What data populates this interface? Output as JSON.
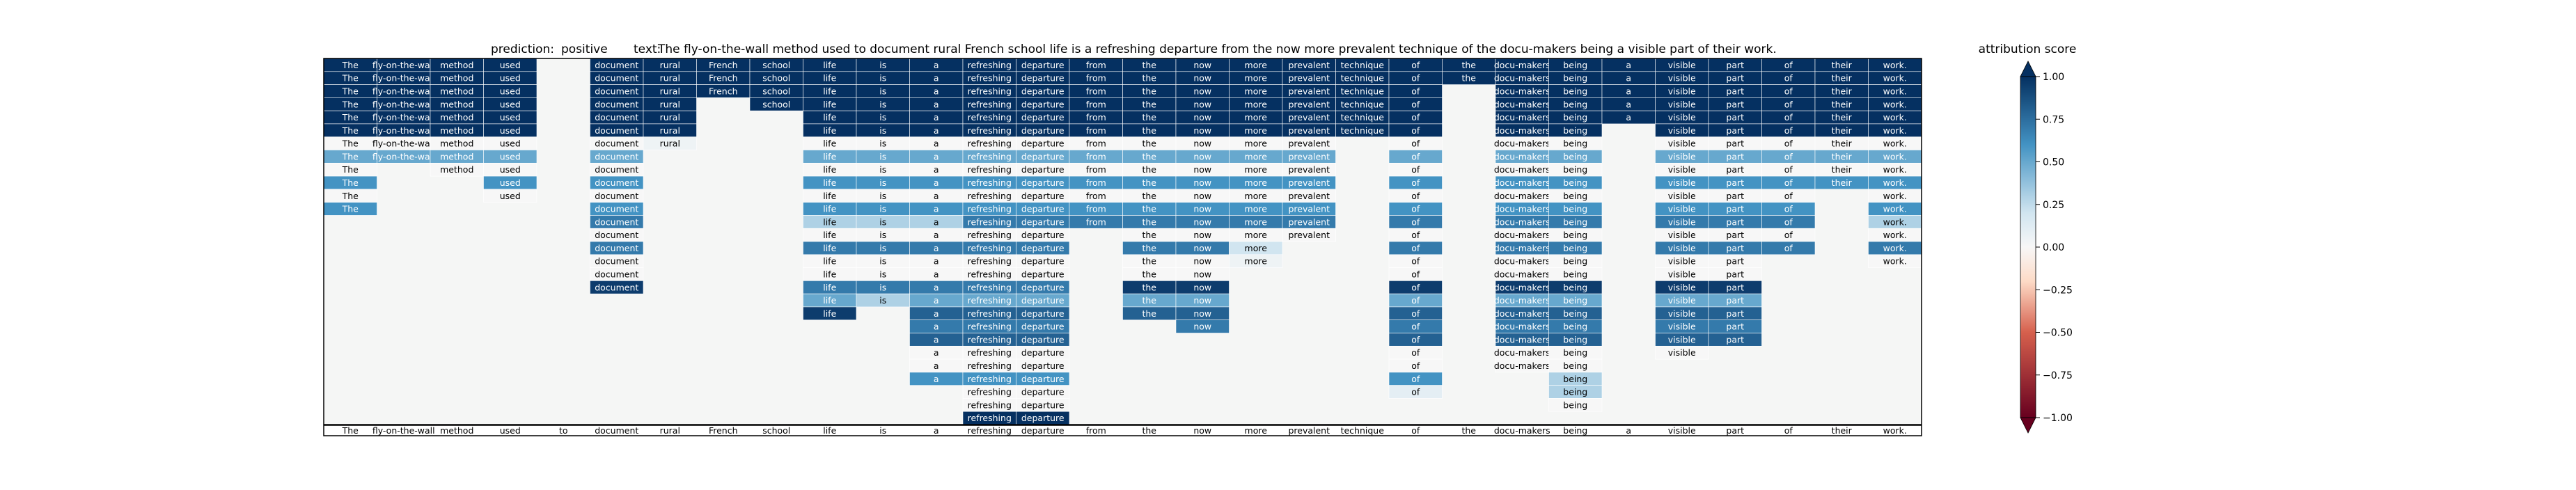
{
  "chart_data": {
    "type": "heatmap",
    "title": {
      "prediction_label": "prediction:",
      "prediction": "positive",
      "text_label": "text:",
      "text": "The fly-on-the-wall method used to document rural French school life is a refreshing departure from the now more prevalent technique of the docu-makers being a visible part of their work."
    },
    "tokens": [
      "The",
      "fly-on-the-wall",
      "method",
      "used",
      "to",
      "document",
      "rural",
      "French",
      "school",
      "life",
      "is",
      "a",
      "refreshing",
      "departure",
      "from",
      "the",
      "now",
      "more",
      "prevalent",
      "technique",
      "of",
      "the",
      "docu-makers",
      "being",
      "a",
      "visible",
      "part",
      "of",
      "their",
      "work."
    ],
    "rows": [
      [
        1,
        1,
        1,
        1,
        null,
        1,
        1,
        1,
        1,
        1,
        1,
        1,
        1,
        1,
        1,
        1,
        1,
        1,
        1,
        1,
        1,
        1,
        1,
        1,
        1,
        1,
        1,
        1,
        1,
        1
      ],
      [
        1,
        1,
        1,
        1,
        null,
        1,
        1,
        1,
        1,
        1,
        1,
        1,
        1,
        1,
        1,
        1,
        1,
        1,
        1,
        1,
        1,
        1,
        1,
        1,
        1,
        1,
        1,
        1,
        1,
        1
      ],
      [
        1,
        1,
        1,
        1,
        null,
        1,
        1,
        1,
        1,
        1,
        1,
        1,
        1,
        1,
        1,
        1,
        1,
        1,
        1,
        1,
        1,
        null,
        1,
        1,
        1,
        1,
        1,
        1,
        1,
        1
      ],
      [
        1,
        1,
        1,
        1,
        null,
        1,
        1,
        null,
        1,
        1,
        1,
        1,
        1,
        1,
        1,
        1,
        1,
        1,
        1,
        1,
        1,
        null,
        1,
        1,
        1,
        1,
        1,
        1,
        1,
        1
      ],
      [
        1,
        1,
        1,
        1,
        null,
        1,
        1,
        null,
        null,
        1,
        1,
        1,
        1,
        1,
        1,
        1,
        1,
        1,
        1,
        1,
        1,
        null,
        1,
        1,
        1,
        1,
        1,
        1,
        1,
        1
      ],
      [
        1,
        1,
        1,
        1,
        null,
        1,
        1,
        null,
        null,
        1,
        1,
        1,
        1,
        1,
        1,
        1,
        1,
        1,
        1,
        1,
        1,
        null,
        1,
        1,
        null,
        1,
        1,
        1,
        1,
        1
      ],
      [
        0,
        0,
        0,
        0,
        null,
        0,
        0.05,
        null,
        null,
        0,
        0,
        0,
        0,
        0,
        0,
        0,
        0,
        0,
        0,
        null,
        0,
        null,
        0,
        0,
        null,
        0,
        0,
        0,
        0,
        0
      ],
      [
        0.5,
        0.5,
        0.5,
        0.5,
        null,
        0.5,
        null,
        null,
        null,
        0.5,
        0.5,
        0.5,
        0.5,
        0.5,
        0.5,
        0.5,
        0.5,
        0.5,
        0.5,
        null,
        0.5,
        null,
        0.5,
        0.5,
        null,
        0.5,
        0.5,
        0.5,
        0.5,
        0.5
      ],
      [
        0,
        null,
        0,
        0,
        null,
        0,
        null,
        null,
        null,
        0,
        0,
        0,
        0,
        0,
        0,
        0,
        0,
        0,
        0,
        null,
        0,
        null,
        0,
        0,
        null,
        0,
        0,
        0,
        0,
        0
      ],
      [
        0.6,
        null,
        null,
        0.6,
        null,
        0.6,
        null,
        null,
        null,
        0.6,
        0.6,
        0.6,
        0.6,
        0.6,
        0.6,
        0.6,
        0.6,
        0.6,
        0.6,
        null,
        0.6,
        null,
        0.6,
        0.6,
        null,
        0.6,
        0.6,
        0.6,
        0.6,
        0.6
      ],
      [
        0,
        null,
        null,
        0,
        null,
        0,
        null,
        null,
        null,
        0,
        0,
        0,
        0,
        0,
        0,
        0,
        0,
        0,
        0,
        null,
        0,
        null,
        0,
        0,
        null,
        0,
        0,
        0,
        null,
        0
      ],
      [
        0.6,
        null,
        null,
        null,
        null,
        0.6,
        null,
        null,
        null,
        0.6,
        0.6,
        0.6,
        0.6,
        0.6,
        0.6,
        0.6,
        0.6,
        0.6,
        0.6,
        null,
        0.6,
        null,
        0.6,
        0.6,
        null,
        0.6,
        0.6,
        0.6,
        null,
        0.6
      ],
      [
        null,
        null,
        null,
        null,
        null,
        0.7,
        null,
        null,
        null,
        0.3,
        0.3,
        0.3,
        0.7,
        0.7,
        0.7,
        0.7,
        0.7,
        0.7,
        0.7,
        null,
        0.7,
        null,
        0.7,
        0.7,
        null,
        0.7,
        0.7,
        0.7,
        null,
        0.3
      ],
      [
        null,
        null,
        null,
        null,
        null,
        0,
        null,
        null,
        null,
        0,
        0,
        0,
        0,
        0,
        null,
        0,
        0,
        0,
        0,
        null,
        0,
        null,
        0,
        0,
        null,
        0,
        0,
        0,
        null,
        0
      ],
      [
        null,
        null,
        null,
        null,
        null,
        0.7,
        null,
        null,
        null,
        0.7,
        0.7,
        0.7,
        0.7,
        0.7,
        null,
        0.7,
        0.7,
        0.2,
        null,
        null,
        0.7,
        null,
        0.7,
        0.7,
        null,
        0.7,
        0.7,
        0.7,
        null,
        0.7
      ],
      [
        null,
        null,
        null,
        null,
        null,
        0,
        null,
        null,
        null,
        0,
        0,
        0,
        0,
        0,
        null,
        0,
        0,
        0.05,
        null,
        null,
        0,
        null,
        0,
        0,
        null,
        0,
        0,
        null,
        null,
        0
      ],
      [
        null,
        null,
        null,
        null,
        null,
        0,
        null,
        null,
        null,
        0,
        0,
        0,
        0,
        0,
        null,
        0,
        0,
        null,
        null,
        null,
        0,
        null,
        0,
        0,
        null,
        0,
        0,
        null,
        null,
        null
      ],
      [
        null,
        null,
        null,
        null,
        null,
        0.95,
        null,
        null,
        null,
        0.7,
        0.7,
        0.7,
        0.7,
        0.7,
        null,
        0.95,
        0.95,
        null,
        null,
        null,
        0.95,
        null,
        0.95,
        0.95,
        null,
        0.95,
        0.95,
        null,
        null,
        null
      ],
      [
        null,
        null,
        null,
        null,
        null,
        null,
        null,
        null,
        null,
        0.5,
        0.3,
        0.5,
        0.5,
        0.5,
        null,
        0.5,
        0.5,
        null,
        null,
        null,
        0.5,
        null,
        0.5,
        0.5,
        null,
        0.5,
        0.5,
        null,
        null,
        null
      ],
      [
        null,
        null,
        null,
        null,
        null,
        null,
        null,
        null,
        null,
        0.95,
        null,
        0.8,
        0.8,
        0.8,
        null,
        0.8,
        0.8,
        null,
        null,
        null,
        0.8,
        null,
        0.8,
        0.8,
        null,
        0.8,
        0.8,
        null,
        null,
        null
      ],
      [
        null,
        null,
        null,
        null,
        null,
        null,
        null,
        null,
        null,
        null,
        null,
        0.7,
        0.7,
        0.7,
        null,
        null,
        0.7,
        null,
        null,
        null,
        0.7,
        null,
        0.7,
        0.7,
        null,
        0.7,
        0.7,
        null,
        null,
        null
      ],
      [
        null,
        null,
        null,
        null,
        null,
        null,
        null,
        null,
        null,
        null,
        null,
        0.8,
        0.8,
        0.8,
        null,
        null,
        null,
        null,
        null,
        null,
        0.8,
        null,
        0.8,
        0.8,
        null,
        0.8,
        0.8,
        null,
        null,
        null
      ],
      [
        null,
        null,
        null,
        null,
        null,
        null,
        null,
        null,
        null,
        null,
        null,
        0,
        0,
        0,
        null,
        null,
        null,
        null,
        null,
        null,
        0,
        null,
        0,
        0,
        null,
        0,
        null,
        null,
        null,
        null
      ],
      [
        null,
        null,
        null,
        null,
        null,
        null,
        null,
        null,
        null,
        null,
        null,
        0,
        0,
        0,
        null,
        null,
        null,
        null,
        null,
        null,
        0,
        null,
        0,
        0,
        null,
        null,
        null,
        null,
        null,
        null
      ],
      [
        null,
        null,
        null,
        null,
        null,
        null,
        null,
        null,
        null,
        null,
        null,
        0.6,
        0.6,
        0.6,
        null,
        null,
        null,
        null,
        null,
        null,
        0.6,
        null,
        null,
        0.3,
        null,
        null,
        null,
        null,
        null,
        null
      ],
      [
        null,
        null,
        null,
        null,
        null,
        null,
        null,
        null,
        null,
        null,
        null,
        null,
        0,
        0,
        null,
        null,
        null,
        null,
        null,
        null,
        0.1,
        null,
        null,
        0.3,
        null,
        null,
        null,
        null,
        null,
        null
      ],
      [
        null,
        null,
        null,
        null,
        null,
        null,
        null,
        null,
        null,
        null,
        null,
        null,
        0,
        0,
        null,
        null,
        null,
        null,
        null,
        null,
        null,
        null,
        null,
        0,
        null,
        null,
        null,
        null,
        null,
        null
      ],
      [
        null,
        null,
        null,
        null,
        null,
        null,
        null,
        null,
        null,
        null,
        null,
        null,
        1,
        1,
        null,
        null,
        null,
        null,
        null,
        null,
        null,
        null,
        null,
        null,
        null,
        null,
        null,
        null,
        null,
        null
      ]
    ],
    "colorbar": {
      "label": "attribution score",
      "vmin": -1.0,
      "vmax": 1.0,
      "ticks": [
        1.0,
        0.75,
        0.5,
        0.25,
        0.0,
        -0.25,
        -0.5,
        -0.75,
        -1.0
      ],
      "tick_labels": [
        "1.00",
        "0.75",
        "0.50",
        "0.25",
        "0.00",
        "−0.25",
        "−0.50",
        "−0.75",
        "−1.00"
      ]
    },
    "colormap": "RdBu",
    "colors": {
      "neg_strong": "#67001f",
      "neg_mid": "#d6604d",
      "neg_light": "#fddbc7",
      "neutral": "#f7f7f7",
      "pos_light": "#d1e5f0",
      "pos_mid": "#4393c3",
      "pos_strong": "#053061",
      "empty": "#f5f6f5",
      "grid": "#ffffff",
      "frame": "#000000"
    }
  }
}
